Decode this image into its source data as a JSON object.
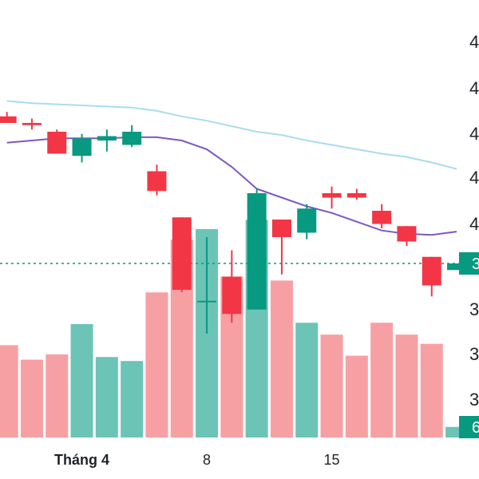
{
  "colors": {
    "up": "#089981",
    "down": "#f23645",
    "up_volume": "#6cc4b6",
    "down_volume": "#f7a0a3",
    "ma_long": "#a8dcf0",
    "ma_short": "#7e57c2",
    "last_price_line": "#089981"
  },
  "chart_data": {
    "type": "candlestick",
    "x_tick_labels": [
      {
        "label": "Tháng 4",
        "index": 3
      },
      {
        "label": "8",
        "index": 8
      },
      {
        "label": "15",
        "index": 13
      }
    ],
    "y_tick_labels_visible": [
      "4",
      "4",
      "4",
      "4",
      "4",
      "3",
      "3",
      "3",
      "3",
      "3"
    ],
    "price_axis_last_value": "3",
    "volume_axis_last_value": "6",
    "ylim": [
      3.0,
      5.0
    ],
    "candles": [
      {
        "open": 4.47,
        "high": 4.49,
        "low": 4.44,
        "close": 4.44
      },
      {
        "open": 4.44,
        "high": 4.46,
        "low": 4.41,
        "close": 4.43
      },
      {
        "open": 4.4,
        "high": 4.41,
        "low": 4.3,
        "close": 4.3
      },
      {
        "open": 4.29,
        "high": 4.39,
        "low": 4.26,
        "close": 4.37
      },
      {
        "open": 4.36,
        "high": 4.41,
        "low": 4.31,
        "close": 4.38
      },
      {
        "open": 4.34,
        "high": 4.43,
        "low": 4.33,
        "close": 4.4
      },
      {
        "open": 4.22,
        "high": 4.25,
        "low": 4.11,
        "close": 4.13
      },
      {
        "open": 4.01,
        "high": 4.01,
        "low": 3.67,
        "close": 3.68
      },
      {
        "open": 3.63,
        "high": 3.92,
        "low": 3.48,
        "close": 3.63
      },
      {
        "open": 3.74,
        "high": 3.86,
        "low": 3.53,
        "close": 3.57
      },
      {
        "open": 3.59,
        "high": 4.14,
        "low": 3.59,
        "close": 4.12
      },
      {
        "open": 4.0,
        "high": 4.0,
        "low": 3.75,
        "close": 3.92
      },
      {
        "open": 3.94,
        "high": 4.07,
        "low": 3.91,
        "close": 4.05
      },
      {
        "open": 4.12,
        "high": 4.15,
        "low": 4.05,
        "close": 4.1
      },
      {
        "open": 4.12,
        "high": 4.14,
        "low": 4.09,
        "close": 4.1
      },
      {
        "open": 4.04,
        "high": 4.07,
        "low": 3.96,
        "close": 3.98
      },
      {
        "open": 3.97,
        "high": 3.97,
        "low": 3.88,
        "close": 3.9
      },
      {
        "open": 3.83,
        "high": 3.83,
        "low": 3.65,
        "close": 3.7
      },
      {
        "open": 3.77,
        "high": 3.8,
        "low": 3.77,
        "close": 3.8
      }
    ],
    "volume": [
      {
        "value": 70,
        "direction": "down"
      },
      {
        "value": 59,
        "direction": "down"
      },
      {
        "value": 63,
        "direction": "down"
      },
      {
        "value": 86,
        "direction": "up"
      },
      {
        "value": 61,
        "direction": "up"
      },
      {
        "value": 58,
        "direction": "up"
      },
      {
        "value": 110,
        "direction": "down"
      },
      {
        "value": 150,
        "direction": "down"
      },
      {
        "value": 158,
        "direction": "up"
      },
      {
        "value": 122,
        "direction": "down"
      },
      {
        "value": 165,
        "direction": "up"
      },
      {
        "value": 119,
        "direction": "down"
      },
      {
        "value": 87,
        "direction": "up"
      },
      {
        "value": 78,
        "direction": "down"
      },
      {
        "value": 62,
        "direction": "down"
      },
      {
        "value": 87,
        "direction": "down"
      },
      {
        "value": 78,
        "direction": "down"
      },
      {
        "value": 71,
        "direction": "down"
      },
      {
        "value": 8,
        "direction": "up"
      }
    ],
    "volume_max": 230,
    "ma_long": [
      4.54,
      4.53,
      4.525,
      4.52,
      4.515,
      4.51,
      4.495,
      4.47,
      4.45,
      4.425,
      4.4,
      4.385,
      4.36,
      4.34,
      4.32,
      4.3,
      4.285,
      4.26,
      4.23
    ],
    "ma_short": [
      4.35,
      4.36,
      4.37,
      4.37,
      4.37,
      4.375,
      4.375,
      4.36,
      4.32,
      4.24,
      4.14,
      4.1,
      4.06,
      4.03,
      3.99,
      3.95,
      3.935,
      3.93,
      3.945
    ],
    "last_price": 3.8,
    "grid": false,
    "legend": "none"
  }
}
